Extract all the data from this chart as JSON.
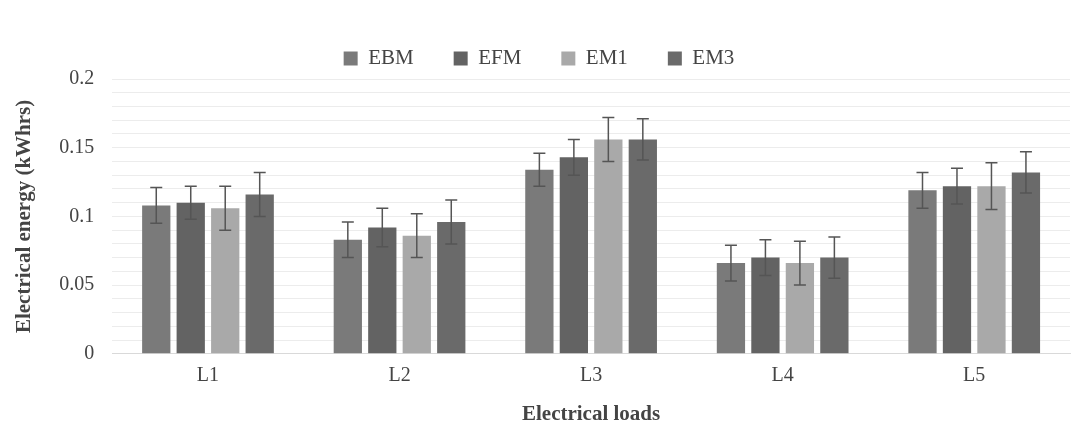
{
  "chart_data": {
    "type": "bar",
    "xlabel": "Electrical loads",
    "ylabel": "Electrical energy (kWhrs)",
    "categories": [
      "L1",
      "L2",
      "L3",
      "L4",
      "L5"
    ],
    "series": [
      {
        "name": "EBM",
        "color": "#7a7a7a",
        "values": [
          0.108,
          0.083,
          0.134,
          0.066,
          0.119
        ],
        "errors": [
          0.013,
          0.013,
          0.012,
          0.013,
          0.013
        ]
      },
      {
        "name": "EFM",
        "color": "#636363",
        "values": [
          0.11,
          0.092,
          0.143,
          0.07,
          0.122
        ],
        "errors": [
          0.012,
          0.014,
          0.013,
          0.013,
          0.013
        ]
      },
      {
        "name": "EM1",
        "color": "#a9a9a9",
        "values": [
          0.106,
          0.086,
          0.156,
          0.066,
          0.122
        ],
        "errors": [
          0.016,
          0.016,
          0.016,
          0.016,
          0.017
        ]
      },
      {
        "name": "EM3",
        "color": "#6a6a6a",
        "values": [
          0.116,
          0.096,
          0.156,
          0.07,
          0.132
        ],
        "errors": [
          0.016,
          0.016,
          0.015,
          0.015,
          0.015
        ]
      }
    ],
    "ylim": [
      0,
      0.2
    ],
    "yticks": [
      0,
      {
        "value": 0.01,
        "label": null
      },
      {
        "value": 0.02,
        "label": null
      },
      {
        "value": 0.03,
        "label": null
      },
      {
        "value": 0.04,
        "label": null
      },
      0.05,
      {
        "value": 0.06,
        "label": null
      },
      {
        "value": 0.07,
        "label": null
      },
      {
        "value": 0.08,
        "label": null
      },
      {
        "value": 0.09,
        "label": null
      },
      0.1,
      {
        "value": 0.11,
        "label": null
      },
      {
        "value": 0.12,
        "label": null
      },
      {
        "value": 0.13,
        "label": null
      },
      {
        "value": 0.14,
        "label": null
      },
      0.15,
      {
        "value": 0.16,
        "label": null
      },
      {
        "value": 0.17,
        "label": null
      },
      {
        "value": 0.18,
        "label": null
      },
      {
        "value": 0.19,
        "label": null
      },
      0.2
    ],
    "grid": "y",
    "legend": "top"
  }
}
